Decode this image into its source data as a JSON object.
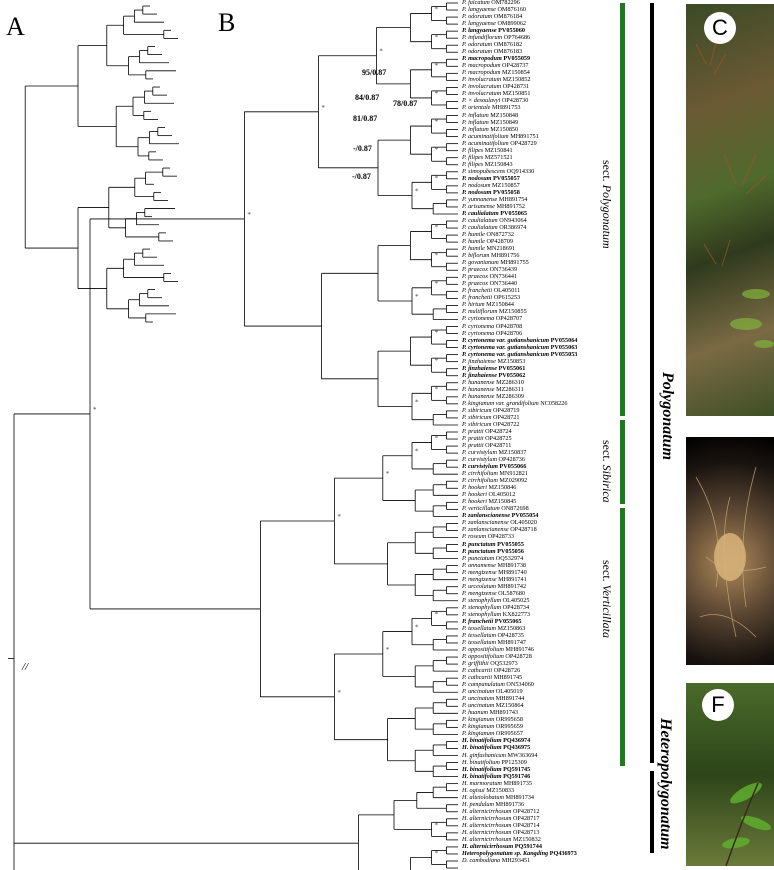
{
  "panels": {
    "a": "A",
    "b": "B",
    "c": "C",
    "f": "F"
  },
  "break_mark": "//",
  "supports": [
    "95/0.87",
    "84/0.87",
    "78/0.87",
    "81/0.87",
    "-/0.87",
    "-/0.87"
  ],
  "sections": {
    "polygonatum": {
      "prefix": "sect. ",
      "name": "Polygonatum"
    },
    "sibirica": {
      "prefix": "sect. ",
      "name": "Sibirica"
    },
    "verticillata": {
      "prefix": "sect. ",
      "name": "Verticillata"
    }
  },
  "genera": {
    "polygonatum": "Polygonatum",
    "heteropolygonatum": "Heteropolygonatum"
  },
  "leaves": [
    {
      "sp": "P. falcatum",
      "acc": "OM782296",
      "b": false
    },
    {
      "sp": "P. langyaense",
      "acc": "OM876160",
      "b": false
    },
    {
      "sp": "P. odoratum",
      "acc": "OM876184",
      "b": false
    },
    {
      "sp": "P. langyaense",
      "acc": "OM899062",
      "b": false
    },
    {
      "sp": "P. langyaense",
      "acc": "PV055060",
      "b": true
    },
    {
      "sp": "P. infundiflorum",
      "acc": "OP764686",
      "b": false
    },
    {
      "sp": "P. odoratum",
      "acc": "OM876182",
      "b": false
    },
    {
      "sp": "P. odoratum",
      "acc": "OM876183",
      "b": false
    },
    {
      "sp": "P. macropodum",
      "acc": "PV055059",
      "b": true
    },
    {
      "sp": "P. macropodum",
      "acc": "OP428737",
      "b": false
    },
    {
      "sp": "P. macropodum",
      "acc": "MZ150854",
      "b": false
    },
    {
      "sp": "P. involucratum",
      "acc": "MZ150852",
      "b": false
    },
    {
      "sp": "P. involucratum",
      "acc": "OP428731",
      "b": false
    },
    {
      "sp": "P. involucratum",
      "acc": "MZ150851",
      "b": false
    },
    {
      "sp": "P. × desoulavyi",
      "acc": "OP428730",
      "b": false
    },
    {
      "sp": "P. orientale",
      "acc": "MH891753",
      "b": false
    },
    {
      "sp": "P. inflatum",
      "acc": "MZ150848",
      "b": false
    },
    {
      "sp": "P. inflatum",
      "acc": "MZ150849",
      "b": false
    },
    {
      "sp": "P. inflatum",
      "acc": "MZ150850",
      "b": false
    },
    {
      "sp": "P. acuminatifolium",
      "acc": "MH891751",
      "b": false
    },
    {
      "sp": "P. acuminatifolium",
      "acc": "OP428729",
      "b": false
    },
    {
      "sp": "P. filipes",
      "acc": "MZ150841",
      "b": false
    },
    {
      "sp": "P. filipes",
      "acc": "MZ571521",
      "b": false
    },
    {
      "sp": "P. filipes",
      "acc": "MZ150843",
      "b": false
    },
    {
      "sp": "P. simopubescens",
      "acc": "OQ914330",
      "b": false
    },
    {
      "sp": "P. nodosum",
      "acc": "PV055057",
      "b": true
    },
    {
      "sp": "P. nodosum",
      "acc": "MZ150857",
      "b": false
    },
    {
      "sp": "P. nodosum",
      "acc": "PV055058",
      "b": true
    },
    {
      "sp": "P. yunnanense",
      "acc": "MH891754",
      "b": false
    },
    {
      "sp": "P. arisanense",
      "acc": "MH891752",
      "b": false
    },
    {
      "sp": "P. caulialatum",
      "acc": "PV055065",
      "b": true
    },
    {
      "sp": "P. caulialatum",
      "acc": "ON943064",
      "b": false
    },
    {
      "sp": "P. caulialatum",
      "acc": "OR386974",
      "b": false
    },
    {
      "sp": "P. humile",
      "acc": "ON872732",
      "b": false
    },
    {
      "sp": "P. humile",
      "acc": "OP428709",
      "b": false
    },
    {
      "sp": "P. humile",
      "acc": "MN218691",
      "b": false
    },
    {
      "sp": "P. biflorum",
      "acc": "MH891756",
      "b": false
    },
    {
      "sp": "P. govanianum",
      "acc": "MH891755",
      "b": false
    },
    {
      "sp": "P. praecox",
      "acc": "ON736439",
      "b": false
    },
    {
      "sp": "P. praecox",
      "acc": "ON736441",
      "b": false
    },
    {
      "sp": "P. praecox",
      "acc": "ON736440",
      "b": false
    },
    {
      "sp": "P. franchetii",
      "acc": "OL405011",
      "b": false
    },
    {
      "sp": "P. franchetii",
      "acc": "OP615253",
      "b": false
    },
    {
      "sp": "P. hirtum",
      "acc": "MZ150844",
      "b": false
    },
    {
      "sp": "P. multiflorum",
      "acc": "MZ150855",
      "b": false
    },
    {
      "sp": "P. cyrtonema",
      "acc": "OP428707",
      "b": false
    },
    {
      "sp": "P. cyrtonema",
      "acc": "OP428708",
      "b": false
    },
    {
      "sp": "P. cyrtonema",
      "acc": "OP428706",
      "b": false
    },
    {
      "sp": "P. cyrtonema var. gutianshanicum",
      "acc": "PV055064",
      "b": true
    },
    {
      "sp": "P. cyrtonema var. gutianshanicum",
      "acc": "PV055063",
      "b": true
    },
    {
      "sp": "P. cyrtonema var. gutianshanicum",
      "acc": "PV055053",
      "b": true
    },
    {
      "sp": "P. jinzhaiense",
      "acc": "MZ150853",
      "b": false
    },
    {
      "sp": "P. jinzhaiense",
      "acc": "PV055061",
      "b": true
    },
    {
      "sp": "P. jinzhaiense",
      "acc": "PV055062",
      "b": true
    },
    {
      "sp": "P. hunanense",
      "acc": "MZ286310",
      "b": false
    },
    {
      "sp": "P. hunanense",
      "acc": "MZ286311",
      "b": false
    },
    {
      "sp": "P. hunanense",
      "acc": "MZ286309",
      "b": false
    },
    {
      "sp": "P. kingianum var. grandifolium",
      "acc": "NC058226",
      "b": false
    },
    {
      "sp": "P. sibiricum",
      "acc": "OP428719",
      "b": false
    },
    {
      "sp": "P. sibiricum",
      "acc": "OP428721",
      "b": false
    },
    {
      "sp": "P. sibiricum",
      "acc": "OP428722",
      "b": false
    },
    {
      "sp": "P. prattii",
      "acc": "OP428724",
      "b": false
    },
    {
      "sp": "P. prattii",
      "acc": "OP428725",
      "b": false
    },
    {
      "sp": "P. prattii",
      "acc": "OP428711",
      "b": false
    },
    {
      "sp": "P. curvistylum",
      "acc": "MZ150837",
      "b": false
    },
    {
      "sp": "P. curvistylum",
      "acc": "OP428736",
      "b": false
    },
    {
      "sp": "P. curvistylum",
      "acc": "PV055066",
      "b": true
    },
    {
      "sp": "P. cirrhifolium",
      "acc": "MN912821",
      "b": false
    },
    {
      "sp": "P. cirrhifolium",
      "acc": "MZ029092",
      "b": false
    },
    {
      "sp": "P. hookeri",
      "acc": "MZ150846",
      "b": false
    },
    {
      "sp": "P. hookeri",
      "acc": "OL405012",
      "b": false
    },
    {
      "sp": "P. hookeri",
      "acc": "MZ150845",
      "b": false
    },
    {
      "sp": "P. verticillatum",
      "acc": "ON872698",
      "b": false
    },
    {
      "sp": "P. zanlanscianense",
      "acc": "PV055054",
      "b": true
    },
    {
      "sp": "P. zanlanscianense",
      "acc": "OL405020",
      "b": false
    },
    {
      "sp": "P. zanlanscianense",
      "acc": "OP428718",
      "b": false
    },
    {
      "sp": "P. roseum",
      "acc": "OP428733",
      "b": false
    },
    {
      "sp": "P. punctatum",
      "acc": "PV055055",
      "b": true
    },
    {
      "sp": "P. punctatum",
      "acc": "PV055056",
      "b": true
    },
    {
      "sp": "P. punctatum",
      "acc": "OQ532974",
      "b": false
    },
    {
      "sp": "P. annamense",
      "acc": "MH891738",
      "b": false
    },
    {
      "sp": "P. mengtzense",
      "acc": "MH891740",
      "b": false
    },
    {
      "sp": "P. mengtzense",
      "acc": "MH891741",
      "b": false
    },
    {
      "sp": "P. urceolatum",
      "acc": "MH891742",
      "b": false
    },
    {
      "sp": "P. mengtzense",
      "acc": "OL587680",
      "b": false
    },
    {
      "sp": "P. stenophyllum",
      "acc": "OL405025",
      "b": false
    },
    {
      "sp": "P. stenophyllum",
      "acc": "OP428734",
      "b": false
    },
    {
      "sp": "P. stenophyllum",
      "acc": "KX822773",
      "b": false
    },
    {
      "sp": "P. franchetii",
      "acc": "PV055065",
      "b": true
    },
    {
      "sp": "P. tessellatum",
      "acc": "MZ150863",
      "b": false
    },
    {
      "sp": "P. tessellatum",
      "acc": "OP428735",
      "b": false
    },
    {
      "sp": "P. tessellatum",
      "acc": "MH891747",
      "b": false
    },
    {
      "sp": "P. oppositifolium",
      "acc": "MH891746",
      "b": false
    },
    {
      "sp": "P. oppositifolium",
      "acc": "OP428728",
      "b": false
    },
    {
      "sp": "P. griffithii",
      "acc": "OQ532973",
      "b": false
    },
    {
      "sp": "P. cathcartii",
      "acc": "OP428726",
      "b": false
    },
    {
      "sp": "P. cathcartii",
      "acc": "MH891745",
      "b": false
    },
    {
      "sp": "P. campanulatum",
      "acc": "ON534060",
      "b": false
    },
    {
      "sp": "P. uncinatum",
      "acc": "OL405019",
      "b": false
    },
    {
      "sp": "P. uncinatum",
      "acc": "MH891744",
      "b": false
    },
    {
      "sp": "P. uncinatum",
      "acc": "MZ150864",
      "b": false
    },
    {
      "sp": "P. huanum",
      "acc": "MH891743",
      "b": false
    },
    {
      "sp": "P. kingianum",
      "acc": "OR995658",
      "b": false
    },
    {
      "sp": "P. kingianum",
      "acc": "OR995659",
      "b": false
    },
    {
      "sp": "P. kingianum",
      "acc": "OR995657",
      "b": false
    },
    {
      "sp": "H. binatifolium",
      "acc": "PQ436974",
      "b": true
    },
    {
      "sp": "H. binatifolium",
      "acc": "PQ436975",
      "b": true
    },
    {
      "sp": "H. ginfushanicum",
      "acc": "MW363694",
      "b": false
    },
    {
      "sp": "H. binatifolium",
      "acc": "PP125309",
      "b": false
    },
    {
      "sp": "H. binatifolium",
      "acc": "PQ591745",
      "b": true
    },
    {
      "sp": "H. binatifolium",
      "acc": "PQ591746",
      "b": true
    },
    {
      "sp": "H. marmoratum",
      "acc": "MH891735",
      "b": false
    },
    {
      "sp": "H. ogisui",
      "acc": "MZ150833",
      "b": false
    },
    {
      "sp": "H. alteiolobatum",
      "acc": "MH891734",
      "b": false
    },
    {
      "sp": "H. pendulum",
      "acc": "MH891736",
      "b": false
    },
    {
      "sp": "H. alternicirrhosum",
      "acc": "OP428712",
      "b": false
    },
    {
      "sp": "H. alternicirrhosum",
      "acc": "OP428717",
      "b": false
    },
    {
      "sp": "H. alternicirrhosum",
      "acc": "OP428714",
      "b": false
    },
    {
      "sp": "H. alternicirrhosum",
      "acc": "OP428713",
      "b": false
    },
    {
      "sp": "H. alternicirrhosum",
      "acc": "MZ150832",
      "b": false
    },
    {
      "sp": "H. alternicirrhosum",
      "acc": "PQ591744",
      "b": true
    },
    {
      "sp": "Heteropolygonatum sp. Kangding",
      "acc": "PQ436973",
      "b": true
    },
    {
      "sp": "D. cambodiana",
      "acc": "MH293451",
      "b": false
    }
  ]
}
